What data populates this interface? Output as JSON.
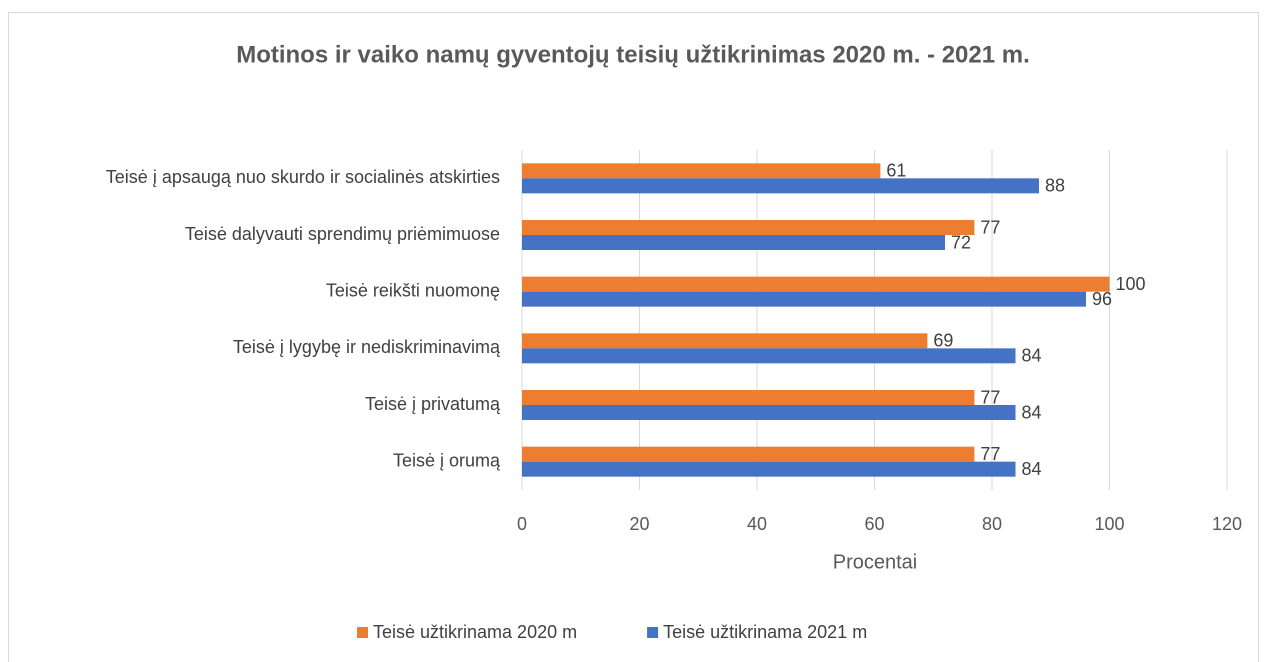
{
  "chart_data": {
    "type": "bar",
    "orientation": "horizontal",
    "title": "Motinos ir vaiko namų gyventojų teisių užtikrinimas 2020 m. - 2021 m.",
    "x_label": "Procentai",
    "categories": [
      "Teisė į apsaugą nuo skurdo ir socialinės atskirties",
      "Teisė dalyvauti sprendimų priėmimuose",
      "Teisė reikšti nuomonę",
      "Teisė į lygybę ir nediskriminavimą",
      "Teisė į privatumą",
      "Teisė į orumą"
    ],
    "series": [
      {
        "name": "Teisė užtikrinama 2020 m",
        "color": "#ed7d31",
        "values": [
          61,
          77,
          100,
          69,
          77,
          77
        ]
      },
      {
        "name": "Teisė užtikrinama 2021 m",
        "color": "#4472c4",
        "values": [
          88,
          72,
          96,
          84,
          84,
          84
        ]
      }
    ],
    "xlim": [
      0,
      120
    ],
    "xticks": [
      0,
      20,
      40,
      60,
      80,
      100,
      120
    ],
    "grid": true,
    "legend": "bottom"
  }
}
